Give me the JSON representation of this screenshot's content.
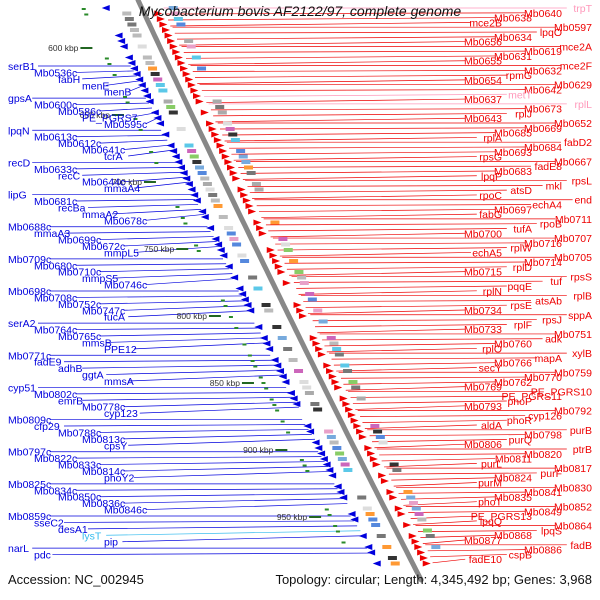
{
  "title": "Mycobacterium bovis AF2122/97, complete genome",
  "footer": {
    "accession": "Accession: NC_002945",
    "stats": "Topology: circular; Length: 4,345,492 bp; Genes: 3,968"
  },
  "colors": {
    "reverse_strand": "#0000dd",
    "forward_strand": "#ee0000",
    "rna_forward": "#ff99bb",
    "rna_reverse": "#55ccee",
    "backbone": "#888888",
    "tick": "#226622"
  },
  "scale_ticks": [
    "600 kbp",
    "650 kbp",
    "700 kbp",
    "750 kbp",
    "800 kbp",
    "850 kbp",
    "900 kbp",
    "950 kbp"
  ],
  "left_labels": [
    "serB1",
    "Mb0536c",
    "fabH",
    "menE",
    "menB",
    "gpsA",
    "Mb0600c",
    "Mb0586c",
    "PE_PGRS7",
    "Mb0595c",
    "lpqN",
    "Mb0613c",
    "Mb0612c",
    "Mb0641c",
    "tcrA",
    "recD",
    "Mb0633c",
    "recC",
    "Mb0644c",
    "mmaA4",
    "lipG",
    "Mb0681c",
    "recBa",
    "mmaA2",
    "Mb0678c",
    "Mb0688c",
    "mmaA3",
    "Mb0699c",
    "Mb0672c",
    "mmpL5",
    "Mb0709c",
    "Mb0680c",
    "Mb0710c",
    "mmpS5",
    "Mb0746c",
    "Mb0698c",
    "Mb0708c",
    "Mb0752c",
    "Mb0747c",
    "fucA",
    "serA2",
    "Mb0764c",
    "Mb0765c",
    "mmsB",
    "PPE12",
    "Mb0771c",
    "fadE9",
    "adhB",
    "ggtA",
    "mmsA",
    "cyp51",
    "Mb0802c",
    "emrB",
    "Mb0778c",
    "cyp123",
    "Mb0809c",
    "cfp29",
    "Mb0788c",
    "Mb0813c",
    "cpsY",
    "Mb0797c",
    "Mb0822c",
    "Mb0833c",
    "Mb0814c",
    "phoY2",
    "Mb0825c",
    "Mb0834c",
    "Mb0850c",
    "Mb0836c",
    "Mb0846c",
    "Mb0859c",
    "sseC2",
    "desA1",
    "lysT",
    "pip",
    "narL",
    "pdc"
  ],
  "right_labels": [
    "trpT",
    "Mb0640",
    "Mb0638",
    "mce2B",
    "Mb0597",
    "lpqO",
    "Mb0634",
    "Mb0656",
    "mce2A",
    "Mb0619",
    "Mb0631",
    "Mb0655",
    "mce2F",
    "Mb0632",
    "rpmG",
    "Mb0654",
    "Mb0629",
    "Mb0642",
    "metT",
    "Mb0637",
    "rplL",
    "Mb0673",
    "rplJ",
    "Mb0643",
    "Mb0652",
    "Mb0669",
    "Mb0685",
    "rplA",
    "fabD2",
    "Mb0684",
    "Mb0693",
    "rpsG",
    "Mb0667",
    "fadE8",
    "Mb0683",
    "lpqP",
    "rpsL",
    "mkl",
    "atsD",
    "rpoC",
    "end",
    "echA4",
    "Mb0697",
    "fabG",
    "Mb0711",
    "rpoB",
    "tufA",
    "Mb0700",
    "Mb0707",
    "Mb0716",
    "rplW",
    "echA5",
    "Mb0705",
    "Mb0714",
    "rplD",
    "Mb0715",
    "rpsS",
    "tuf",
    "pqqE",
    "rplN",
    "rplB",
    "atsAb",
    "rpsE",
    "Mb0734",
    "sppA",
    "rpsJ",
    "rplF",
    "Mb0733",
    "Mb0751",
    "adk",
    "Mb0760",
    "rplO",
    "xylB",
    "mapA",
    "Mb0766",
    "secY",
    "Mb0759",
    "Mb0770",
    "Mb0762",
    "Mb0769",
    "PE_PGRS10",
    "PE_PGRS11",
    "phoP",
    "Mb0793",
    "Mb0792",
    "cyp126",
    "phoR",
    "aldA",
    "purB",
    "Mb0798",
    "purQ",
    "Mb0806",
    "ptrB",
    "Mb0820",
    "Mb0811",
    "purL",
    "Mb0817",
    "purF",
    "Mb0824",
    "purM",
    "Mb0830",
    "Mb0841",
    "Mb0835",
    "phoT",
    "Mb0852",
    "Mb0849",
    "PE_PGRS13",
    "lpqQ",
    "Mb0864",
    "lpqS",
    "Mb0868",
    "Mb0877",
    "fadB",
    "Mb0886",
    "cspB",
    "fadE10"
  ]
}
